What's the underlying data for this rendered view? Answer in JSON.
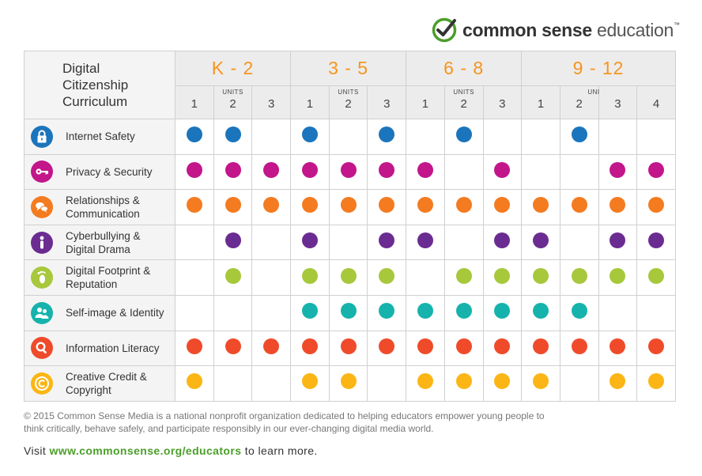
{
  "brand": {
    "name_bold": "common sense",
    "name_light": "education",
    "trademark": "™",
    "check_color": "#4c9e2a"
  },
  "header": {
    "title_lines": [
      "Digital",
      "Citizenship",
      "Curriculum"
    ],
    "units_label": "UNITS"
  },
  "grades": [
    {
      "label": "K - 2",
      "units": [
        "1",
        "2",
        "3"
      ]
    },
    {
      "label": "3 - 5",
      "units": [
        "1",
        "2",
        "3"
      ]
    },
    {
      "label": "6 - 8",
      "units": [
        "1",
        "2",
        "3"
      ]
    },
    {
      "label": "9 - 12",
      "units": [
        "1",
        "2",
        "3",
        "4"
      ]
    }
  ],
  "topics": [
    {
      "label": "Internet Safety",
      "icon": "lock-icon",
      "color": "#1b75bc",
      "marks": [
        1,
        1,
        0,
        1,
        0,
        1,
        0,
        1,
        0,
        0,
        1,
        0,
        0
      ]
    },
    {
      "label": "Privacy & Security",
      "icon": "key-icon",
      "color": "#c2168a",
      "marks": [
        1,
        1,
        1,
        1,
        1,
        1,
        1,
        0,
        1,
        0,
        0,
        1,
        1
      ]
    },
    {
      "label": "Relationships & Communication",
      "icon": "speech-bubbles-icon",
      "color": "#f47b20",
      "marks": [
        1,
        1,
        1,
        1,
        1,
        1,
        1,
        1,
        1,
        1,
        1,
        1,
        1
      ]
    },
    {
      "label": "Cyberbullying & Digital Drama",
      "icon": "person-icon",
      "color": "#6b2c91",
      "marks": [
        0,
        1,
        0,
        1,
        0,
        1,
        1,
        0,
        1,
        1,
        0,
        1,
        1
      ]
    },
    {
      "label": "Digital Footprint & Reputation",
      "icon": "footprint-icon",
      "color": "#a8c83c",
      "marks": [
        0,
        1,
        0,
        1,
        1,
        1,
        0,
        1,
        1,
        1,
        1,
        1,
        1
      ]
    },
    {
      "label": "Self-image & Identity",
      "icon": "people-icon",
      "color": "#16b3ad",
      "marks": [
        0,
        0,
        0,
        1,
        1,
        1,
        1,
        1,
        1,
        1,
        1,
        0,
        0
      ]
    },
    {
      "label": "Information Literacy",
      "icon": "magnifier-icon",
      "color": "#ef4b2b",
      "marks": [
        1,
        1,
        1,
        1,
        1,
        1,
        1,
        1,
        1,
        1,
        1,
        1,
        1
      ]
    },
    {
      "label": "Creative Credit & Copyright",
      "icon": "copyright-icon",
      "color": "#fbb615",
      "marks": [
        1,
        0,
        0,
        1,
        1,
        0,
        1,
        1,
        1,
        1,
        0,
        1,
        1
      ]
    }
  ],
  "footer": {
    "copyright": "© 2015 Common Sense Media is a national nonprofit organization dedicated to helping educators empower young people to think critically, behave safely, and participate responsibly in our ever-changing digital media world.",
    "visit_prefix": "Visit ",
    "visit_url": "www.commonsense.org/educators",
    "visit_suffix": " to learn more."
  }
}
